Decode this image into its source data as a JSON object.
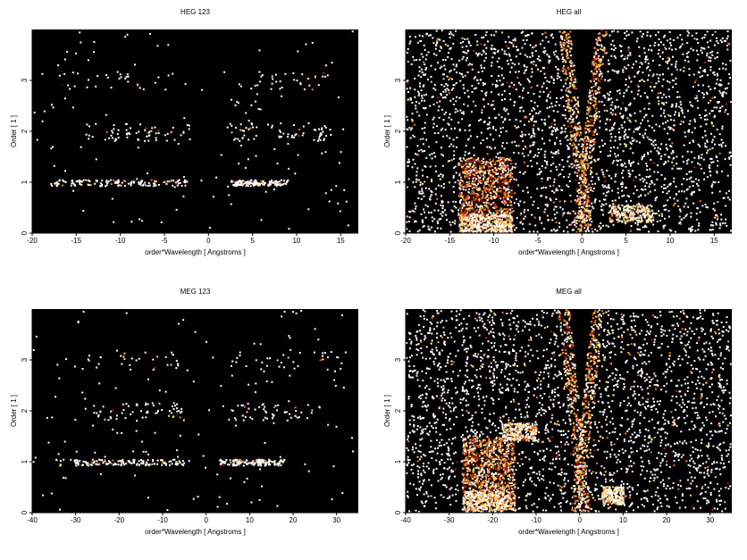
{
  "chart_data": [
    {
      "type": "heatmap",
      "title": "HEG 123",
      "xlabel": "order*Wavelength [ Angstroms ]",
      "ylabel": "Order [ 1 ]",
      "xlim": [
        -20,
        17
      ],
      "ylim": [
        0,
        4
      ],
      "xticks": [
        -20,
        -15,
        -10,
        -5,
        0,
        5,
        10,
        15
      ],
      "yticks": [
        0,
        1,
        2,
        3
      ],
      "background": "#000000",
      "colormap": [
        "#5a0000",
        "#b3220a",
        "#f07b1a",
        "#ffd36b",
        "#ffffff"
      ],
      "density": "sparse",
      "bands": [
        {
          "order": 1,
          "x": [
            -18,
            -2.5
          ],
          "strength": 0.55
        },
        {
          "order": 1,
          "x": [
            2.5,
            9
          ],
          "strength": 0.55
        },
        {
          "order": 2,
          "x": [
            -14,
            -2
          ],
          "strength": 0.25
        },
        {
          "order": 2,
          "x": [
            2,
            14
          ],
          "strength": 0.25
        },
        {
          "order": 3,
          "x": [
            -17,
            -3
          ],
          "strength": 0.12
        },
        {
          "order": 3,
          "x": [
            3,
            14
          ],
          "strength": 0.12
        }
      ]
    },
    {
      "type": "heatmap",
      "title": "HEG all",
      "xlabel": "order*Wavelength [ Angstroms ]",
      "ylabel": "Order [ 1 ]",
      "xlim": [
        -20,
        17
      ],
      "ylim": [
        0,
        4
      ],
      "xticks": [
        -20,
        -15,
        -10,
        -5,
        0,
        5,
        10,
        15
      ],
      "yticks": [
        0,
        1,
        2,
        3
      ],
      "background": "#000000",
      "colormap": [
        "#5a0000",
        "#b3220a",
        "#f07b1a",
        "#ffd36b",
        "#ffffff"
      ],
      "density": "dense",
      "cone": {
        "left_slope": -1.55,
        "right_slope": 1.5
      },
      "hot_block": {
        "x": [
          -14,
          -8
        ],
        "y": [
          0,
          1.5
        ]
      },
      "bands": [
        {
          "order": 0.2,
          "x": [
            -14,
            -8
          ],
          "strength": 0.9
        },
        {
          "order": 0.4,
          "x": [
            3,
            8
          ],
          "strength": 0.6
        }
      ]
    },
    {
      "type": "heatmap",
      "title": "MEG 123",
      "xlabel": "order*Wavelength [ Angstroms ]",
      "ylabel": "Order [ 1 ]",
      "xlim": [
        -40,
        35
      ],
      "ylim": [
        0,
        4
      ],
      "xticks": [
        -40,
        -30,
        -20,
        -10,
        0,
        10,
        20,
        30
      ],
      "yticks": [
        0,
        1,
        2,
        3
      ],
      "background": "#000000",
      "colormap": [
        "#5a0000",
        "#b3220a",
        "#f07b1a",
        "#ffd36b",
        "#ffffff"
      ],
      "density": "sparse",
      "bands": [
        {
          "order": 1,
          "x": [
            -35,
            -4
          ],
          "strength": 0.55
        },
        {
          "order": 1,
          "x": [
            3,
            18
          ],
          "strength": 0.55
        },
        {
          "order": 2,
          "x": [
            -28,
            -5
          ],
          "strength": 0.22
        },
        {
          "order": 2,
          "x": [
            5,
            26
          ],
          "strength": 0.22
        },
        {
          "order": 3,
          "x": [
            -33,
            -5
          ],
          "strength": 0.12
        },
        {
          "order": 3,
          "x": [
            5,
            31
          ],
          "strength": 0.12
        }
      ]
    },
    {
      "type": "heatmap",
      "title": "MEG all",
      "xlabel": "order*Wavelength [ Angstroms ]",
      "ylabel": "Order [ 1 ]",
      "xlim": [
        -40,
        35
      ],
      "ylim": [
        0,
        4
      ],
      "xticks": [
        -40,
        -30,
        -20,
        -10,
        0,
        10,
        20,
        30
      ],
      "yticks": [
        0,
        1,
        2,
        3
      ],
      "background": "#000000",
      "colormap": [
        "#5a0000",
        "#b3220a",
        "#f07b1a",
        "#ffd36b",
        "#ffffff"
      ],
      "density": "dense",
      "cone": {
        "left_slope": -0.82,
        "right_slope": 0.78
      },
      "hot_block": {
        "x": [
          -27,
          -15
        ],
        "y": [
          0,
          1.5
        ]
      },
      "bands": [
        {
          "order": 0.25,
          "x": [
            -27,
            -15
          ],
          "strength": 0.9
        },
        {
          "order": 1.6,
          "x": [
            -18,
            -10
          ],
          "strength": 0.7
        },
        {
          "order": 0.35,
          "x": [
            5,
            10
          ],
          "strength": 0.6
        }
      ]
    }
  ]
}
